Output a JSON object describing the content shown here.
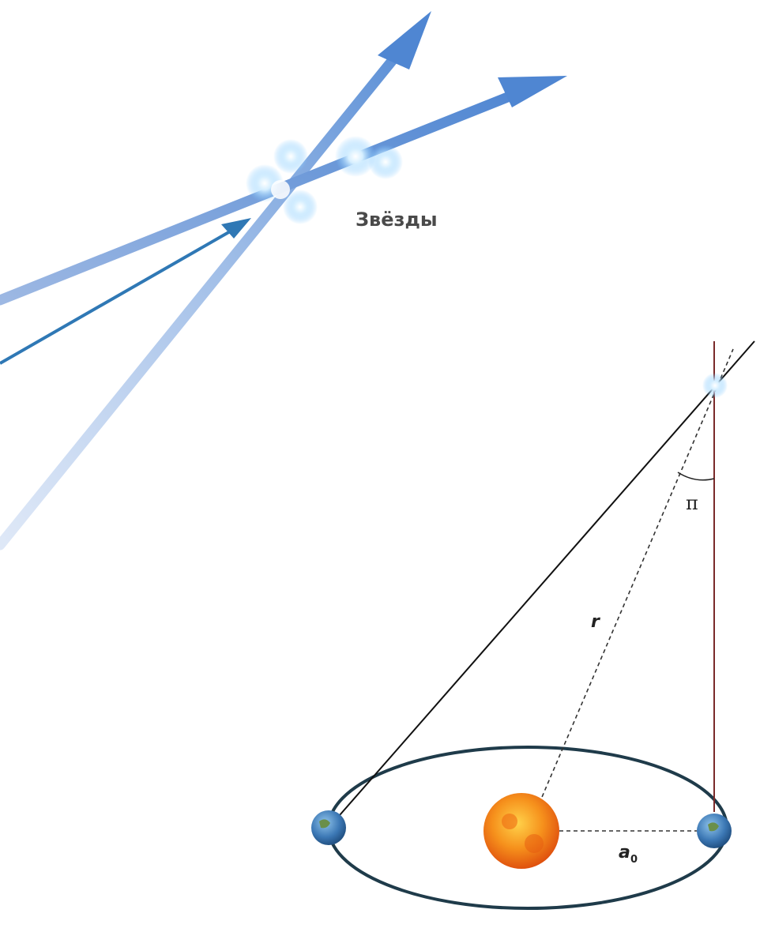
{
  "labels": {
    "stars": "Звёзды",
    "parallax_angle": "π",
    "distance": "r",
    "semi_axis_main": "a",
    "semi_axis_sub": "0"
  },
  "colors": {
    "beam": "#5b8fd6",
    "beam_dark": "#2f6fb5",
    "orbit": "#1f3b4a",
    "sight_line": "#111111",
    "sun": "#f08a1a",
    "earth": "#3c78b5",
    "star_glow": "#a9dcff"
  },
  "icons": {
    "star": "star-glow-icon",
    "sun": "sun-icon",
    "earth": "earth-icon"
  }
}
